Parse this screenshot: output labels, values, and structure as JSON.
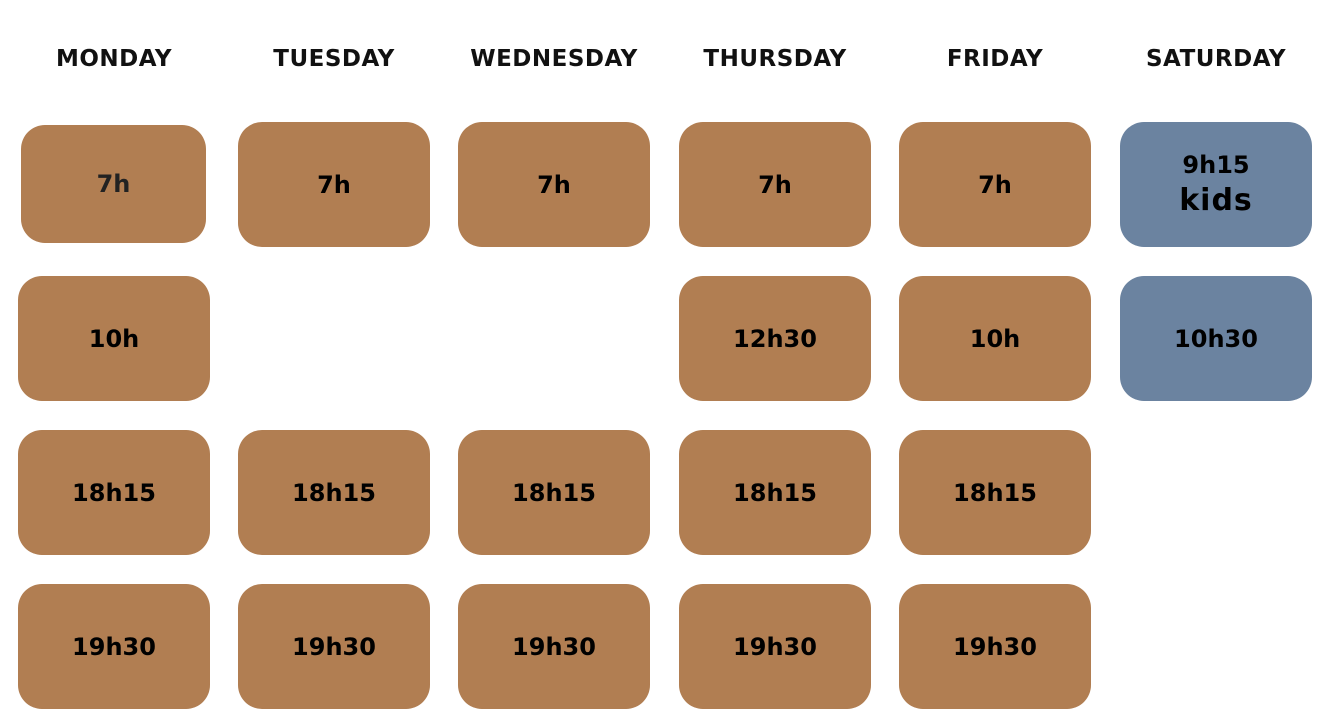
{
  "colors": {
    "regular": "#b17e52",
    "kids": "#6b83a0"
  },
  "days": [
    {
      "name": "MONDAY",
      "slots": [
        {
          "time": "7h"
        },
        {
          "time": "10h"
        },
        {
          "time": "18h15"
        },
        {
          "time": "19h30"
        }
      ]
    },
    {
      "name": "TUESDAY",
      "slots": [
        {
          "time": "7h"
        },
        null,
        {
          "time": "18h15"
        },
        {
          "time": "19h30"
        }
      ]
    },
    {
      "name": "WEDNESDAY",
      "slots": [
        {
          "time": "7h"
        },
        null,
        {
          "time": "18h15"
        },
        {
          "time": "19h30"
        }
      ]
    },
    {
      "name": "THURSDAY",
      "slots": [
        {
          "time": "7h"
        },
        {
          "time": "12h30"
        },
        {
          "time": "18h15"
        },
        {
          "time": "19h30"
        }
      ]
    },
    {
      "name": "FRIDAY",
      "slots": [
        {
          "time": "7h"
        },
        {
          "time": "10h"
        },
        {
          "time": "18h15"
        },
        {
          "time": "19h30"
        }
      ]
    },
    {
      "name": "SATURDAY",
      "slots": [
        {
          "time": "9h15",
          "label": "kids",
          "type": "kids"
        },
        {
          "time": "10h30",
          "type": "kids"
        },
        null,
        null
      ]
    }
  ]
}
